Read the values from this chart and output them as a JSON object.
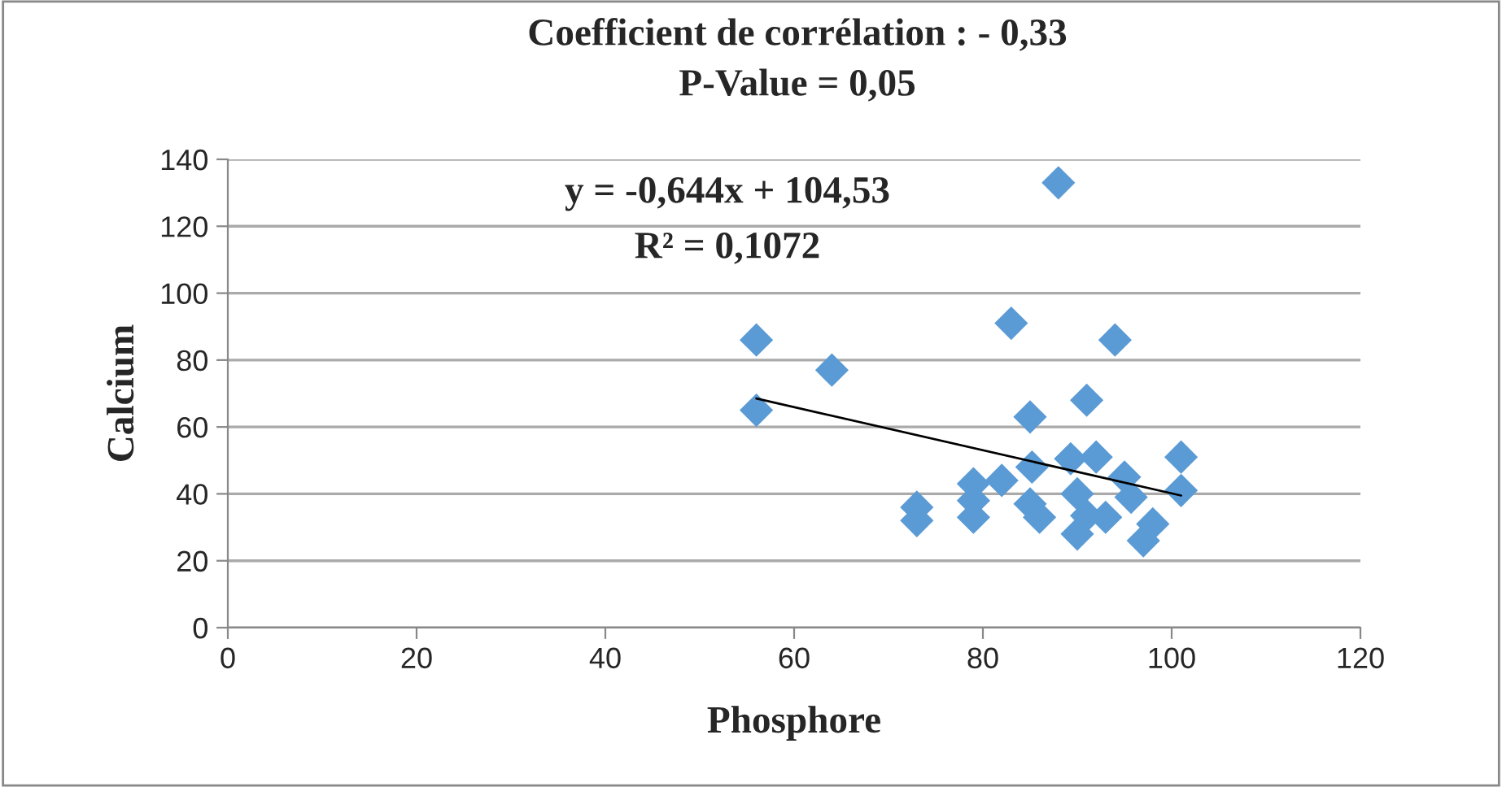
{
  "chart_data": {
    "type": "scatter",
    "title": "Coefficient de corrélation : - 0,33",
    "subtitle": "P-Value = 0,05",
    "xlabel": "Phosphore",
    "ylabel": "Calcium",
    "annotations": [
      "y = -0,644x + 104,53",
      "R² = 0,1072"
    ],
    "series": [
      {
        "color": "#5b9bd5",
        "marker": "diamond",
        "x": [
          56,
          56,
          64,
          73,
          73,
          79,
          79,
          79,
          82,
          83,
          85,
          85.2,
          85,
          86,
          88,
          89.3,
          90,
          90,
          91,
          92,
          94,
          95,
          93,
          98,
          97,
          95.7,
          101,
          101,
          91
        ],
        "values": [
          86,
          65,
          77,
          36,
          32,
          43,
          38,
          33,
          44,
          91,
          63,
          48,
          37,
          33,
          133,
          50.5,
          40,
          28,
          68,
          51,
          86,
          45,
          33,
          31,
          26,
          39,
          51,
          41,
          33.5
        ]
      },
      {
        "type": "line",
        "color": "#000000",
        "marker": "none",
        "x": [
          56,
          101
        ],
        "values": [
          68.5,
          39.5
        ]
      }
    ],
    "xlim": [
      0,
      120
    ],
    "xticks": [
      0,
      20,
      40,
      60,
      80,
      100,
      120
    ],
    "ylim": [
      0,
      140
    ],
    "yticks": [
      0,
      20,
      40,
      60,
      80,
      100,
      120,
      140
    ],
    "grid": "y",
    "legend": false
  }
}
